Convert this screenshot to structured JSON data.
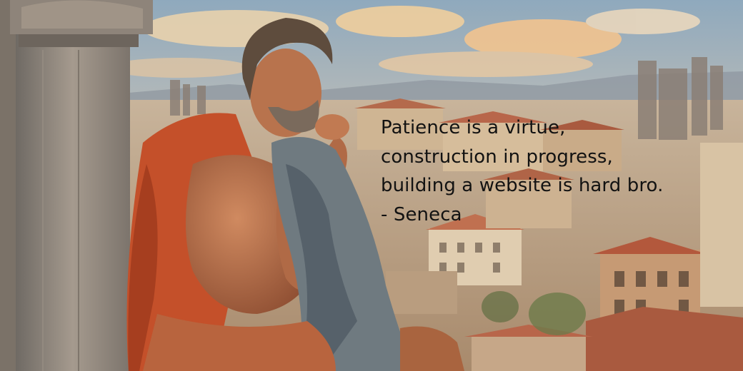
{
  "image": {
    "subject": "philosopher-overlooking-city"
  },
  "quote": {
    "lines": [
      "Patience is a virtue,",
      "construction in progress,",
      "building a website is hard bro.",
      "- Seneca"
    ]
  },
  "colors": {
    "text": "#121212",
    "sky": "#a9bcc8",
    "cloud": "#f2c48f",
    "robe_red": "#c4502a",
    "cloth_gray": "#6f7a80",
    "skin": "#b06a46",
    "roof": "#b8664a",
    "wall": "#d9c3a3",
    "pillar": "#8e847a"
  }
}
